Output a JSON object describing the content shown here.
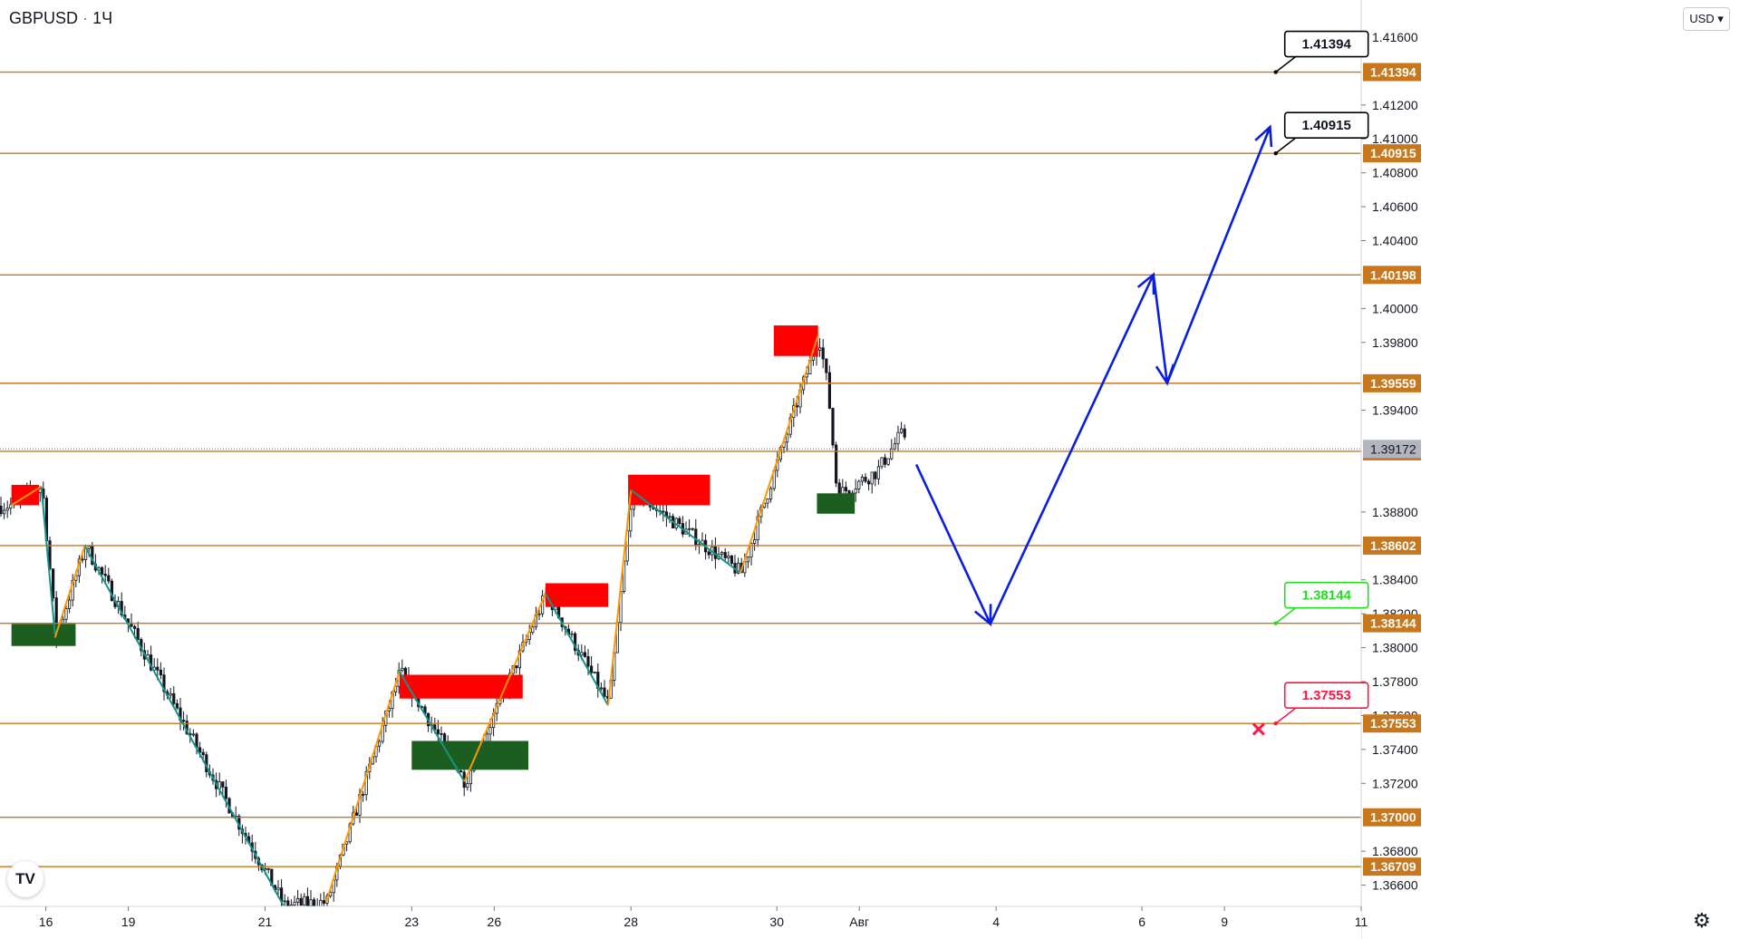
{
  "header": {
    "symbol": "GBPUSD",
    "interval": "1Ч",
    "separator": "·"
  },
  "currency_button": {
    "label": "USD",
    "icon": "chevron-down-icon"
  },
  "logo": {
    "label": "TV"
  },
  "settings": {
    "icon": "gear-icon",
    "glyph": "⚙"
  },
  "colors": {
    "level_line": "#c7781e",
    "label_bg": "#c7781e",
    "current_price_bg": "#b2b5be",
    "supply_zone": "#ff0000",
    "demand_zone": "#1b5e20",
    "zigzag_up": "#ff9800",
    "zigzag_down": "#159386",
    "forecast": "#0a1ee0",
    "target_box": "#000000",
    "green_box": "#22dd22",
    "stop_box": "#ff1744",
    "candle": "#131722"
  },
  "chart_data": {
    "type": "candlestick",
    "symbol": "GBPUSD",
    "timeframe": "1Ч",
    "y_axis": {
      "min": 1.3648,
      "max": 1.4168,
      "tick_labels": [
        "1.41600",
        "1.41200",
        "1.41000",
        "1.40800",
        "1.40600",
        "1.40400",
        "1.40000",
        "1.39800",
        "1.39400",
        "1.38800",
        "1.38400",
        "1.38200",
        "1.38000",
        "1.37800",
        "1.37600",
        "1.37400",
        "1.37200",
        "1.36800",
        "1.36600"
      ]
    },
    "x_axis": {
      "tick_labels": [
        {
          "label": "16",
          "date": "2021-07-16"
        },
        {
          "label": "19",
          "date": "2021-07-19"
        },
        {
          "label": "21",
          "date": "2021-07-21"
        },
        {
          "label": "23",
          "date": "2021-07-23"
        },
        {
          "label": "26",
          "date": "2021-07-26"
        },
        {
          "label": "28",
          "date": "2021-07-28"
        },
        {
          "label": "30",
          "date": "2021-07-30"
        },
        {
          "label": "Авг",
          "date": "2021-08-02"
        },
        {
          "label": "4",
          "date": "2021-08-04"
        },
        {
          "label": "6",
          "date": "2021-08-06"
        },
        {
          "label": "9",
          "date": "2021-08-09"
        },
        {
          "label": "11",
          "date": "2021-08-11"
        }
      ]
    },
    "current_price": "1.39172",
    "levels": [
      {
        "label": "1.41394"
      },
      {
        "label": "1.40915"
      },
      {
        "label": "1.40198"
      },
      {
        "label": "1.39559"
      },
      {
        "label": "1.39158"
      },
      {
        "label": "1.38602"
      },
      {
        "label": "1.38144"
      },
      {
        "label": "1.37553"
      },
      {
        "label": "1.37000"
      },
      {
        "label": "1.36709"
      }
    ],
    "target_labels": [
      {
        "text": "1.41394",
        "style": "target",
        "price": 1.41394,
        "date": "2021-08-09T18:00"
      },
      {
        "text": "1.40915",
        "style": "target",
        "price": 1.40915,
        "date": "2021-08-09T18:00"
      },
      {
        "text": "1.38144",
        "style": "green",
        "price": 1.38144,
        "date": "2021-08-09T18:00"
      },
      {
        "text": "1.37553",
        "style": "stop",
        "price": 1.37553,
        "date": "2021-08-09T18:00"
      }
    ],
    "stop_marker": {
      "price": 1.3752,
      "date": "2021-08-09T12:00"
    },
    "supply_zones": [
      {
        "x0": "2021-07-14T18:00",
        "x1": "2021-07-15T18:00",
        "y0": 1.3884,
        "y1": 1.3896
      },
      {
        "x0": "2021-07-22T20:00",
        "x1": "2021-07-26T10:00",
        "y0": 1.377,
        "y1": 1.3784
      },
      {
        "x0": "2021-07-26T18:00",
        "x1": "2021-07-27T16:00",
        "y0": 1.3824,
        "y1": 1.3838
      },
      {
        "x0": "2021-07-27T23:00",
        "x1": "2021-07-29T02:00",
        "y0": 1.3884,
        "y1": 1.3902
      },
      {
        "x0": "2021-07-29T23:00",
        "x1": "2021-07-31T12:00",
        "y0": 1.3972,
        "y1": 1.399
      }
    ],
    "demand_zones": [
      {
        "x0": "2021-07-14T18:00",
        "x1": "2021-07-17T02:00",
        "y0": 1.3801,
        "y1": 1.3814
      },
      {
        "x0": "2021-07-23T00:00",
        "x1": "2021-07-26T12:00",
        "y0": 1.3728,
        "y1": 1.3745
      },
      {
        "x0": "2021-07-31T11:00",
        "x1": "2021-08-01T20:00",
        "y0": 1.3879,
        "y1": 1.3891
      }
    ],
    "zigzag": [
      {
        "color": "up",
        "points": [
          [
            "2021-07-14T18:00",
            1.3884
          ],
          [
            "2021-07-15T20:00",
            1.3895
          ]
        ]
      },
      {
        "color": "down",
        "points": [
          [
            "2021-07-15T20:00",
            1.3895
          ],
          [
            "2021-07-16T08:00",
            1.3808
          ]
        ]
      },
      {
        "color": "up",
        "points": [
          [
            "2021-07-16T08:00",
            1.3806
          ],
          [
            "2021-07-17T10:00",
            1.386
          ]
        ]
      },
      {
        "color": "down",
        "points": [
          [
            "2021-07-17T10:00",
            1.386
          ],
          [
            "2021-07-21T06:00",
            1.3648
          ]
        ]
      },
      {
        "color": "up",
        "points": [
          [
            "2021-07-21T20:00",
            1.365
          ],
          [
            "2021-07-22T20:00",
            1.3786
          ]
        ]
      },
      {
        "color": "down",
        "points": [
          [
            "2021-07-22T20:00",
            1.3786
          ],
          [
            "2021-07-24T22:00",
            1.3721
          ]
        ]
      },
      {
        "color": "up",
        "points": [
          [
            "2021-07-24T22:00",
            1.3721
          ],
          [
            "2021-07-26T18:00",
            1.3832
          ]
        ]
      },
      {
        "color": "down",
        "points": [
          [
            "2021-07-26T18:00",
            1.3832
          ],
          [
            "2021-07-27T16:00",
            1.3766
          ]
        ]
      },
      {
        "color": "up",
        "points": [
          [
            "2021-07-27T16:00",
            1.3766
          ],
          [
            "2021-07-28T00:00",
            1.3893
          ]
        ]
      },
      {
        "color": "down",
        "points": [
          [
            "2021-07-28T00:00",
            1.3893
          ],
          [
            "2021-07-29T12:00",
            1.3844
          ]
        ]
      },
      {
        "color": "up",
        "points": [
          [
            "2021-07-29T12:00",
            1.3844
          ],
          [
            "2021-07-31T12:00",
            1.3984
          ]
        ]
      }
    ],
    "forecast_path": [
      {
        "date": "2021-08-02T20:00",
        "price": 1.3908
      },
      {
        "date": "2021-08-03T22:00",
        "price": 1.3814
      },
      {
        "date": "2021-08-06T10:00",
        "price": 1.402
      },
      {
        "date": "2021-08-06T22:00",
        "price": 1.3956
      },
      {
        "date": "2021-08-09T16:00",
        "price": 1.4107
      }
    ],
    "grid": false,
    "legend": "none"
  }
}
